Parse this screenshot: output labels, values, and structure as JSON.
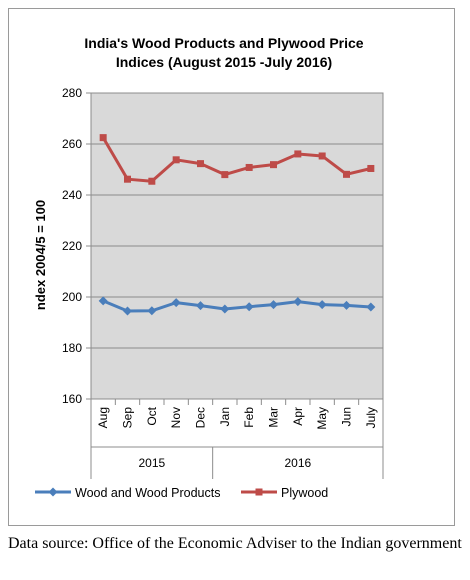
{
  "colors": {
    "plot_background": "#d9d9d9",
    "series_wood": "#4a7ebb",
    "series_plywood": "#be4b48"
  },
  "source_note": "Data source: Office of the Economic Adviser to the Indian government",
  "chart_data": {
    "type": "line",
    "title_lines": [
      "India's Wood Products and Plywood Price",
      "Indices (August 2015 -July 2016)"
    ],
    "ylabel": "ndex 2004/5 = 100",
    "xlabel": "",
    "ylim": [
      160,
      280
    ],
    "yticks": [
      160,
      180,
      200,
      220,
      240,
      260,
      280
    ],
    "grid": true,
    "categories": [
      "Aug",
      "Sep",
      "Oct",
      "Nov",
      "Dec",
      "Jan",
      "Feb",
      "Mar",
      "Apr",
      "May",
      "Jun",
      "July"
    ],
    "year_groups": [
      {
        "label": "2015",
        "count": 5
      },
      {
        "label": "2016",
        "count": 7
      }
    ],
    "legend_position": "bottom",
    "series": [
      {
        "name": "Wood and Wood Products",
        "color_key": "series_wood",
        "marker": "diamond",
        "values": [
          198.5,
          194.5,
          194.6,
          197.8,
          196.6,
          195.3,
          196.2,
          197.0,
          198.2,
          197.0,
          196.7,
          196.1
        ]
      },
      {
        "name": "Plywood",
        "color_key": "series_plywood",
        "marker": "square",
        "values": [
          262.5,
          246.2,
          245.4,
          253.8,
          252.3,
          248.0,
          250.8,
          251.9,
          256.1,
          255.3,
          248.1,
          250.4
        ]
      }
    ]
  }
}
